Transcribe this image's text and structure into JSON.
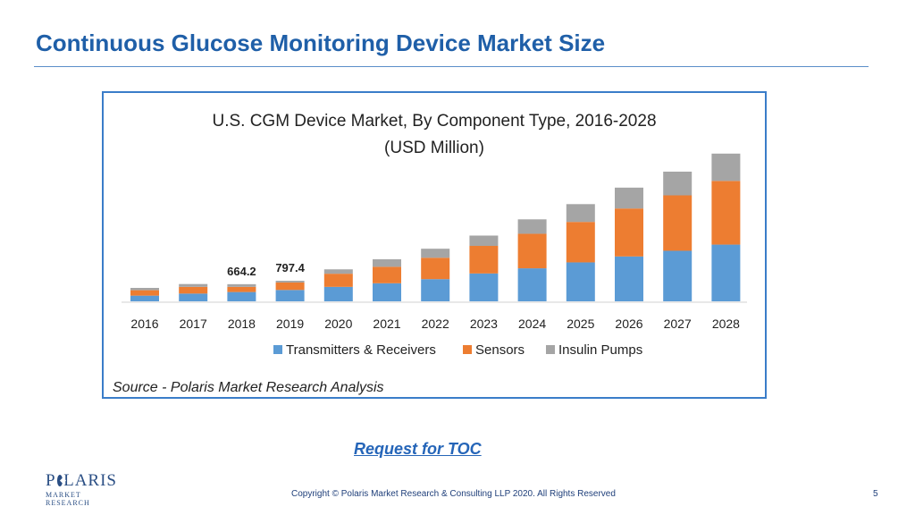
{
  "slide": {
    "title": "Continuous Glucose Monitoring Device Market Size",
    "toc_link": "Request for TOC",
    "copyright": "Copyright © Polaris Market Research & Consulting LLP 2020. All Rights Reserved",
    "page_number": "5"
  },
  "logo": {
    "name_prefix": "P",
    "name_suffix": "LARIS",
    "tagline": "MARKET RESEARCH"
  },
  "chart_data": {
    "type": "bar",
    "stacked": true,
    "title": "U.S. CGM Device Market, By Component Type, 2016-2028",
    "subtitle": "(USD Million)",
    "source": "Source - Polaris Market Research Analysis",
    "categories": [
      "2016",
      "2017",
      "2018",
      "2019",
      "2020",
      "2021",
      "2022",
      "2023",
      "2024",
      "2025",
      "2026",
      "2027",
      "2028"
    ],
    "series": [
      {
        "name": "Transmitters & Receivers",
        "color": "#5b9bd5",
        "values": [
          220,
          300,
          360,
          440,
          560,
          700,
          860,
          1080,
          1280,
          1510,
          1740,
          1960,
          2200
        ]
      },
      {
        "name": "Sensors",
        "color": "#ed7d31",
        "values": [
          210,
          260,
          200,
          290,
          510,
          640,
          830,
          1070,
          1340,
          1570,
          1860,
          2150,
          2470
        ]
      },
      {
        "name": "Insulin Pumps",
        "color": "#a5a5a5",
        "values": [
          90,
          110,
          104,
          67,
          170,
          290,
          350,
          400,
          560,
          690,
          810,
          920,
          1060
        ]
      }
    ],
    "data_labels": [
      {
        "category": "2018",
        "text": "664.2"
      },
      {
        "category": "2019",
        "text": "797.4"
      }
    ],
    "ylim": [
      0,
      6000
    ],
    "grid": false,
    "legend_position": "bottom"
  }
}
